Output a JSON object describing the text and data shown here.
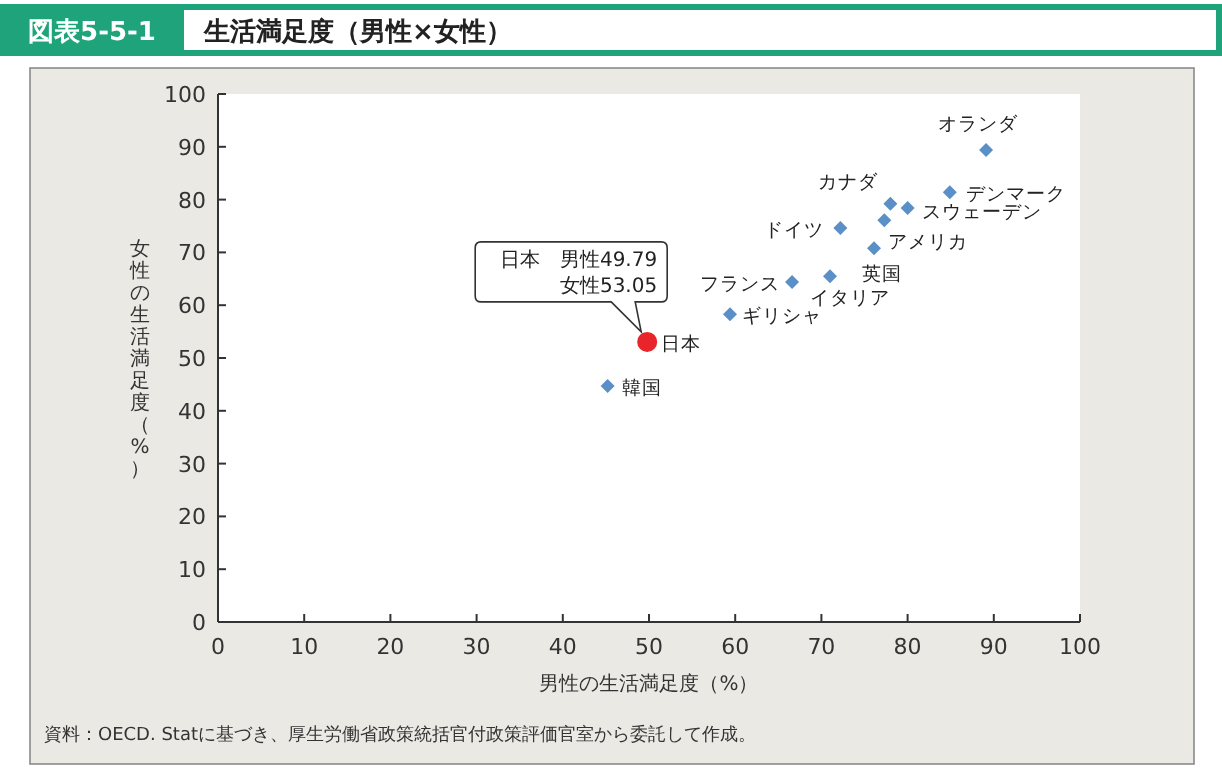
{
  "chart_data": {
    "type": "scatter",
    "subtitle": "図表5-5-1",
    "title": "生活満足度（男性×女性）",
    "xlabel": "男性の生活満足度（%）",
    "ylabel": "女性の生活満足度（%）",
    "xlim": [
      0,
      100
    ],
    "ylim": [
      0,
      100
    ],
    "xticks": [
      0,
      10,
      20,
      30,
      40,
      50,
      60,
      70,
      80,
      90,
      100
    ],
    "yticks": [
      0,
      10,
      20,
      30,
      40,
      50,
      60,
      70,
      80,
      90,
      100
    ],
    "series": [
      {
        "color": "#5b8fc7",
        "marker": "diamond",
        "x": [
          89.1,
          84.9,
          78.0,
          80.0,
          72.2,
          77.3,
          76.1,
          71.0,
          66.6,
          59.4,
          45.2
        ],
        "values": [
          89.4,
          81.4,
          79.2,
          78.4,
          74.6,
          76.1,
          70.8,
          65.5,
          64.4,
          58.3,
          44.7
        ]
      },
      {
        "color": "#e8252a",
        "marker": "circle",
        "x": [
          49.79
        ],
        "values": [
          53.05
        ]
      }
    ],
    "annotations": [
      {
        "text": "オランダ",
        "x": 89.1,
        "y": 89.4
      },
      {
        "text": "デンマーク",
        "x": 84.9,
        "y": 81.4
      },
      {
        "text": "カナダ",
        "x": 78.0,
        "y": 79.2
      },
      {
        "text": "スウェーデン",
        "x": 80.0,
        "y": 78.4
      },
      {
        "text": "ドイツ",
        "x": 72.2,
        "y": 74.6
      },
      {
        "text": "アメリカ",
        "x": 77.3,
        "y": 76.1
      },
      {
        "text": "英国",
        "x": 76.1,
        "y": 70.8
      },
      {
        "text": "イタリア",
        "x": 71.0,
        "y": 65.5
      },
      {
        "text": "フランス",
        "x": 66.6,
        "y": 64.4
      },
      {
        "text": "ギリシャ",
        "x": 59.4,
        "y": 58.3
      },
      {
        "text": "韓国",
        "x": 45.2,
        "y": 44.7
      },
      {
        "text": "日本",
        "x": 49.79,
        "y": 53.05
      },
      {
        "text": "日本　男性49.79\n女性53.05",
        "x": 49.79,
        "y": 53.05
      },
      "資料：OECD. Statに基づき、厚生労働省政策統括官付政策評価官室から委託して作成。"
    ]
  }
}
